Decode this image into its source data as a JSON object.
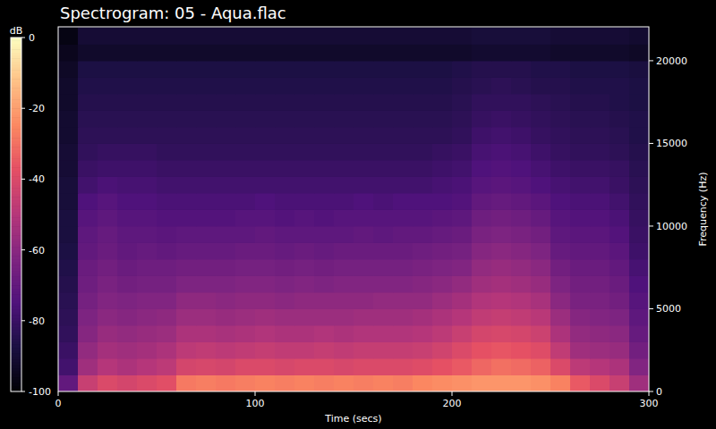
{
  "chart_data": {
    "type": "heatmap",
    "title": "Spectrogram: 05 - Aqua.flac",
    "x_label": "Time (secs)",
    "y_label": "Frequency (Hz)",
    "colorbar_label": "dB",
    "xlim": [
      0,
      300
    ],
    "xticks": [
      0,
      100,
      200,
      300
    ],
    "ylim": [
      0,
      22050
    ],
    "yticks": [
      0,
      5000,
      10000,
      15000,
      20000
    ],
    "colorbar_range": [
      -100,
      0
    ],
    "colorbar_ticks": [
      0,
      -20,
      -40,
      -60,
      -80,
      -100
    ],
    "tick_labels": true,
    "x": [
      5,
      15,
      25,
      35,
      45,
      55,
      65,
      75,
      85,
      95,
      105,
      115,
      125,
      135,
      145,
      155,
      165,
      175,
      185,
      195,
      205,
      215,
      225,
      235,
      245,
      255,
      265,
      275,
      285,
      295
    ],
    "y": [
      500,
      1500,
      2500,
      3500,
      4500,
      5500,
      6500,
      7500,
      8500,
      9500,
      10500,
      11500,
      12500,
      13500,
      14500,
      15500,
      16500,
      17500,
      18500,
      19500,
      20500,
      21500
    ],
    "cells": [
      [
        -70,
        -45,
        -40,
        -42,
        -40,
        -38,
        -28,
        -27,
        -28,
        -27,
        -26,
        -27,
        -26,
        -27,
        -26,
        -27,
        -26,
        -27,
        -25,
        -24,
        -23,
        -22,
        -22,
        -22,
        -23,
        -26,
        -35,
        -40,
        -45,
        -55
      ],
      [
        -78,
        -55,
        -50,
        -52,
        -50,
        -48,
        -42,
        -41,
        -42,
        -40,
        -40,
        -41,
        -40,
        -40,
        -41,
        -40,
        -40,
        -40,
        -39,
        -37,
        -35,
        -32,
        -30,
        -31,
        -33,
        -40,
        -48,
        -50,
        -52,
        -62
      ],
      [
        -80,
        -58,
        -54,
        -55,
        -54,
        -52,
        -48,
        -47,
        -48,
        -47,
        -46,
        -47,
        -47,
        -46,
        -47,
        -46,
        -46,
        -46,
        -45,
        -43,
        -40,
        -37,
        -36,
        -37,
        -39,
        -47,
        -55,
        -56,
        -57,
        -66
      ],
      [
        -82,
        -61,
        -57,
        -58,
        -57,
        -56,
        -52,
        -52,
        -53,
        -52,
        -51,
        -52,
        -52,
        -51,
        -52,
        -51,
        -51,
        -51,
        -50,
        -48,
        -45,
        -42,
        -41,
        -42,
        -44,
        -52,
        -58,
        -59,
        -60,
        -69
      ],
      [
        -83,
        -63,
        -60,
        -61,
        -60,
        -59,
        -56,
        -56,
        -57,
        -56,
        -55,
        -56,
        -56,
        -56,
        -56,
        -55,
        -55,
        -55,
        -54,
        -52,
        -50,
        -47,
        -46,
        -47,
        -49,
        -56,
        -61,
        -62,
        -63,
        -71
      ],
      [
        -84,
        -65,
        -62,
        -63,
        -62,
        -62,
        -59,
        -59,
        -60,
        -59,
        -59,
        -60,
        -59,
        -59,
        -59,
        -59,
        -58,
        -58,
        -58,
        -56,
        -54,
        -51,
        -50,
        -51,
        -53,
        -60,
        -64,
        -64,
        -66,
        -73
      ],
      [
        -85,
        -67,
        -64,
        -66,
        -65,
        -65,
        -63,
        -63,
        -63,
        -62,
        -62,
        -63,
        -62,
        -63,
        -62,
        -62,
        -62,
        -62,
        -61,
        -60,
        -58,
        -55,
        -54,
        -55,
        -57,
        -63,
        -66,
        -66,
        -68,
        -75
      ],
      [
        -86,
        -68,
        -66,
        -68,
        -67,
        -67,
        -66,
        -66,
        -66,
        -65,
        -65,
        -66,
        -65,
        -66,
        -65,
        -65,
        -65,
        -65,
        -64,
        -63,
        -62,
        -58,
        -57,
        -58,
        -60,
        -66,
        -68,
        -68,
        -70,
        -77
      ],
      [
        -87,
        -70,
        -68,
        -70,
        -69,
        -70,
        -69,
        -69,
        -69,
        -68,
        -68,
        -69,
        -68,
        -69,
        -68,
        -68,
        -68,
        -68,
        -67,
        -66,
        -65,
        -61,
        -60,
        -61,
        -63,
        -69,
        -70,
        -70,
        -72,
        -79
      ],
      [
        -88,
        -71,
        -69,
        -71,
        -71,
        -72,
        -71,
        -71,
        -71,
        -71,
        -70,
        -71,
        -71,
        -71,
        -71,
        -70,
        -71,
        -70,
        -70,
        -69,
        -68,
        -64,
        -63,
        -64,
        -66,
        -71,
        -72,
        -72,
        -74,
        -80
      ],
      [
        -88,
        -73,
        -71,
        -73,
        -73,
        -74,
        -74,
        -74,
        -74,
        -73,
        -73,
        -74,
        -73,
        -74,
        -73,
        -73,
        -73,
        -73,
        -73,
        -72,
        -71,
        -67,
        -66,
        -67,
        -69,
        -73,
        -74,
        -74,
        -76,
        -81
      ],
      [
        -89,
        -75,
        -73,
        -75,
        -75,
        -76,
        -76,
        -76,
        -76,
        -76,
        -75,
        -76,
        -76,
        -76,
        -76,
        -75,
        -76,
        -75,
        -75,
        -75,
        -74,
        -70,
        -69,
        -70,
        -72,
        -75,
        -76,
        -76,
        -78,
        -82
      ],
      [
        -89,
        -78,
        -76,
        -77,
        -77,
        -78,
        -78,
        -78,
        -78,
        -78,
        -78,
        -78,
        -78,
        -78,
        -78,
        -78,
        -78,
        -78,
        -78,
        -77,
        -76,
        -73,
        -72,
        -73,
        -75,
        -77,
        -78,
        -78,
        -80,
        -83
      ],
      [
        -90,
        -80,
        -79,
        -79,
        -79,
        -80,
        -80,
        -80,
        -80,
        -80,
        -80,
        -80,
        -80,
        -80,
        -80,
        -80,
        -80,
        -80,
        -80,
        -79,
        -78,
        -75,
        -74,
        -75,
        -77,
        -79,
        -80,
        -80,
        -81,
        -84
      ],
      [
        -90,
        -82,
        -81,
        -81,
        -81,
        -82,
        -82,
        -82,
        -82,
        -82,
        -82,
        -82,
        -82,
        -82,
        -82,
        -82,
        -82,
        -82,
        -82,
        -81,
        -80,
        -77,
        -76,
        -77,
        -79,
        -81,
        -82,
        -82,
        -83,
        -85
      ],
      [
        -91,
        -83,
        -83,
        -83,
        -83,
        -83,
        -83,
        -83,
        -83,
        -83,
        -83,
        -83,
        -83,
        -83,
        -83,
        -83,
        -83,
        -83,
        -83,
        -83,
        -82,
        -79,
        -78,
        -79,
        -81,
        -82,
        -83,
        -83,
        -84,
        -86
      ],
      [
        -91,
        -84,
        -84,
        -84,
        -84,
        -84,
        -84,
        -84,
        -84,
        -84,
        -84,
        -84,
        -84,
        -84,
        -84,
        -84,
        -84,
        -84,
        -84,
        -84,
        -83,
        -81,
        -80,
        -81,
        -82,
        -83,
        -84,
        -84,
        -85,
        -86
      ],
      [
        -92,
        -85,
        -85,
        -85,
        -85,
        -85,
        -85,
        -85,
        -85,
        -85,
        -85,
        -85,
        -85,
        -85,
        -85,
        -85,
        -85,
        -85,
        -85,
        -85,
        -84,
        -82,
        -82,
        -82,
        -83,
        -84,
        -85,
        -85,
        -86,
        -87
      ],
      [
        -92,
        -86,
        -86,
        -86,
        -86,
        -86,
        -86,
        -86,
        -86,
        -86,
        -86,
        -86,
        -86,
        -86,
        -86,
        -86,
        -86,
        -86,
        -86,
        -86,
        -85,
        -84,
        -83,
        -84,
        -85,
        -85,
        -86,
        -86,
        -86,
        -87
      ],
      [
        -93,
        -87,
        -87,
        -87,
        -87,
        -87,
        -87,
        -87,
        -87,
        -87,
        -87,
        -87,
        -87,
        -87,
        -87,
        -87,
        -87,
        -87,
        -87,
        -87,
        -86,
        -85,
        -85,
        -85,
        -86,
        -86,
        -87,
        -87,
        -87,
        -88
      ],
      [
        -95,
        -92,
        -92,
        -92,
        -92,
        -92,
        -92,
        -92,
        -92,
        -92,
        -92,
        -92,
        -92,
        -92,
        -92,
        -92,
        -92,
        -92,
        -92,
        -92,
        -92,
        -91,
        -91,
        -91,
        -91,
        -92,
        -92,
        -92,
        -92,
        -93
      ],
      [
        -97,
        -90,
        -90,
        -90,
        -90,
        -90,
        -90,
        -90,
        -90,
        -90,
        -90,
        -90,
        -90,
        -90,
        -90,
        -90,
        -90,
        -90,
        -90,
        -90,
        -90,
        -89,
        -89,
        -89,
        -89,
        -90,
        -90,
        -90,
        -90,
        -91
      ]
    ]
  }
}
